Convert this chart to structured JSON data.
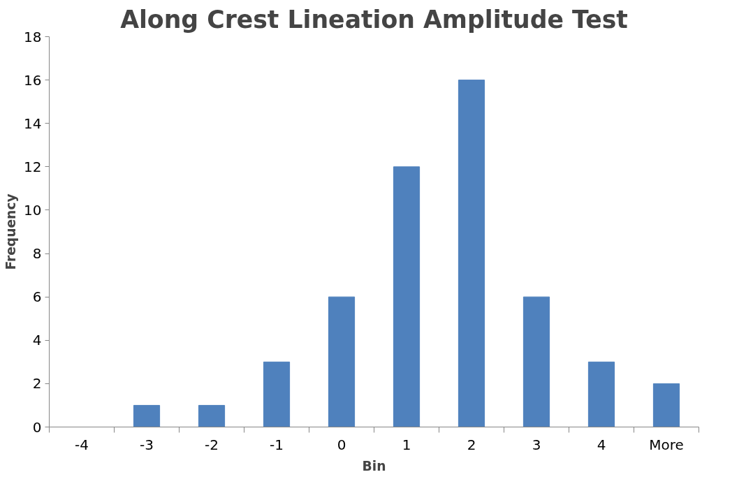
{
  "chart_data": {
    "type": "bar",
    "title": "Along Crest Lineation Amplitude Test",
    "xlabel": "Bin",
    "ylabel": "Frequency",
    "categories": [
      "-4",
      "-3",
      "-2",
      "-1",
      "0",
      "1",
      "2",
      "3",
      "4",
      "More"
    ],
    "values": [
      0,
      1,
      1,
      3,
      6,
      12,
      16,
      6,
      3,
      2
    ],
    "color": "#4f81bd",
    "ylim": [
      0,
      18
    ],
    "yticks": [
      0,
      2,
      4,
      6,
      8,
      10,
      12,
      14,
      16,
      18
    ],
    "grid": false
  }
}
